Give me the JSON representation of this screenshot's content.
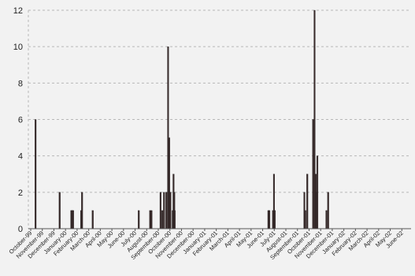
{
  "chart_data": {
    "type": "bar",
    "title": "",
    "xlabel": "",
    "ylabel": "",
    "ylim": [
      0,
      12
    ],
    "y_ticks": [
      "0",
      "2",
      "4",
      "6",
      "8",
      "10",
      "12"
    ],
    "grid": true,
    "categories": [
      "October-99",
      "November-99",
      "December-99",
      "January-00",
      "February-00",
      "March-00",
      "April-00",
      "May-00",
      "June-00",
      "July-00",
      "August-00",
      "September-00",
      "October-00",
      "November-00",
      "December-00",
      "January-01",
      "February-01",
      "March-01",
      "April-01",
      "May-01",
      "June-01",
      "July-01",
      "August-01",
      "September-01",
      "October-01",
      "November-01",
      "December-01",
      "January-02",
      "February-02",
      "March-02",
      "April-02",
      "May-02",
      "June-02"
    ],
    "x_tick_labels": [
      "October-99",
      "November-99",
      "December-99",
      "January-00",
      "February-00",
      "March-00",
      "April-00",
      "May-00",
      "June-00",
      "July-00",
      "August-00",
      "September-00",
      "October-00",
      "November-00",
      "December-00",
      "January-01",
      "February-01",
      "March-01",
      "April-01",
      "May-01",
      "June-01",
      "July-01",
      "August-01",
      "September-01",
      "October-01",
      "November-01",
      "December-01",
      "January-02",
      "February-02",
      "March-02",
      "April-02",
      "May-02",
      "June-02"
    ],
    "events": [
      {
        "x": 0.62,
        "value": 6
      },
      {
        "x": 2.7,
        "value": 2
      },
      {
        "x": 3.7,
        "value": 1
      },
      {
        "x": 3.78,
        "value": 1
      },
      {
        "x": 3.86,
        "value": 1
      },
      {
        "x": 4.55,
        "value": 1
      },
      {
        "x": 4.63,
        "value": 2
      },
      {
        "x": 5.55,
        "value": 1
      },
      {
        "x": 9.52,
        "value": 1
      },
      {
        "x": 10.5,
        "value": 1
      },
      {
        "x": 10.62,
        "value": 1
      },
      {
        "x": 11.4,
        "value": 2
      },
      {
        "x": 11.55,
        "value": 1
      },
      {
        "x": 11.7,
        "value": 2
      },
      {
        "x": 11.9,
        "value": 2
      },
      {
        "x": 12.05,
        "value": 10
      },
      {
        "x": 12.15,
        "value": 5
      },
      {
        "x": 12.25,
        "value": 2
      },
      {
        "x": 12.45,
        "value": 1
      },
      {
        "x": 12.52,
        "value": 3
      },
      {
        "x": 12.58,
        "value": 2
      },
      {
        "x": 12.62,
        "value": 1
      },
      {
        "x": 20.7,
        "value": 1
      },
      {
        "x": 20.78,
        "value": 1
      },
      {
        "x": 21.1,
        "value": 1
      },
      {
        "x": 21.18,
        "value": 3
      },
      {
        "x": 21.25,
        "value": 1
      },
      {
        "x": 23.8,
        "value": 2
      },
      {
        "x": 23.88,
        "value": 1
      },
      {
        "x": 24.05,
        "value": 3
      },
      {
        "x": 24.55,
        "value": 6
      },
      {
        "x": 24.68,
        "value": 12
      },
      {
        "x": 24.78,
        "value": 3
      },
      {
        "x": 24.85,
        "value": 2
      },
      {
        "x": 24.92,
        "value": 4
      },
      {
        "x": 25.7,
        "value": 1
      },
      {
        "x": 25.85,
        "value": 2
      }
    ]
  }
}
